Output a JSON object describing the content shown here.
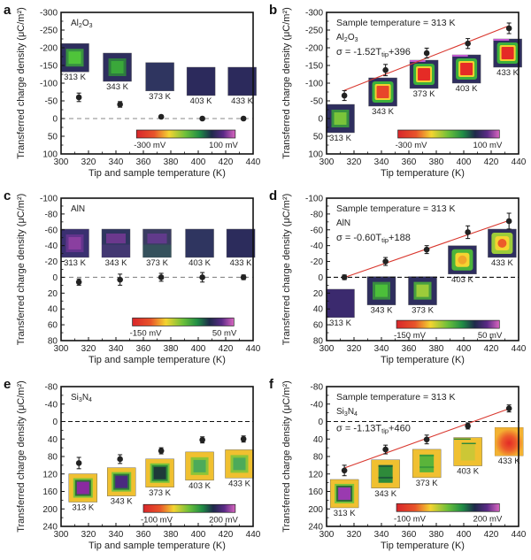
{
  "chart_data": [
    {
      "panel": "a",
      "type": "scatter",
      "material": "Al2O3",
      "material_html": [
        "Al",
        "2",
        "O",
        "3"
      ],
      "xlabel": "Tip and sample temperature (K)",
      "ylabel": "Transferred charge density (μC/m²)",
      "xlim": [
        300,
        440
      ],
      "xticks": [
        300,
        320,
        340,
        360,
        380,
        400,
        420,
        440
      ],
      "ylim": [
        100,
        -300
      ],
      "yticks": [
        -300,
        -250,
        -200,
        -150,
        -100,
        -50,
        0,
        50,
        100
      ],
      "x": [
        313,
        343,
        373,
        403,
        433
      ],
      "y": [
        -60,
        -40,
        -5,
        0,
        0
      ],
      "yerr": [
        12,
        8,
        3,
        3,
        3
      ],
      "zero_line": true,
      "sample_temperature_note": null,
      "fit": null,
      "colorbar": {
        "min_label": "-300 mV",
        "max_label": "100 mV",
        "x_range": [
          355,
          427
        ],
        "y_at": 45
      },
      "insets": [
        {
          "label": "313 K",
          "x": 310,
          "y": -172,
          "pattern": "square",
          "bg": "#2e2e5e",
          "core": "#4fc43a",
          "ring": "#3aa23c"
        },
        {
          "label": "343 K",
          "x": 341,
          "y": -145,
          "pattern": "square",
          "bg": "#2e2e5e",
          "core": "#3aa83a",
          "ring": "#2e8a3a"
        },
        {
          "label": "373 K",
          "x": 372,
          "y": -118,
          "pattern": "flat",
          "bg": "#2f3560",
          "core": "#2f3560",
          "ring": "#2f3560"
        },
        {
          "label": "403 K",
          "x": 402,
          "y": -105,
          "pattern": "flat",
          "bg": "#2c2a5c",
          "core": "#2c2a5c",
          "ring": "#2c2a5c"
        },
        {
          "label": "433 K",
          "x": 432,
          "y": -105,
          "pattern": "flat",
          "bg": "#2c2a5c",
          "core": "#2c2a5c",
          "ring": "#2c2a5c"
        }
      ]
    },
    {
      "panel": "b",
      "type": "scatter",
      "material": "Al2O3",
      "material_html": [
        "Al",
        "2",
        "O",
        "3"
      ],
      "xlabel": "Tip temperature (K)",
      "ylabel": "Transferred charge density (μC/m²)",
      "xlim": [
        300,
        440
      ],
      "xticks": [
        300,
        320,
        340,
        360,
        380,
        400,
        420,
        440
      ],
      "ylim": [
        100,
        -300
      ],
      "yticks": [
        -300,
        -250,
        -200,
        -150,
        -100,
        -50,
        0,
        50,
        100
      ],
      "x": [
        313,
        343,
        373,
        403,
        433
      ],
      "y": [
        -65,
        -137,
        -185,
        -212,
        -255
      ],
      "yerr": [
        14,
        16,
        14,
        14,
        15
      ],
      "zero_line": false,
      "sample_temperature_note": "Sample temperature = 313 K",
      "fit": {
        "equation": "σ = -1.52T",
        "subscript": "tip",
        "intercept_text": "+396",
        "slope": -1.52,
        "intercept": 396,
        "x_range": [
          313,
          433
        ],
        "color": "#d9382f"
      },
      "colorbar": {
        "min_label": "-300 mV",
        "max_label": "100 mV",
        "x_range": [
          352,
          426
        ],
        "y_at": 45
      },
      "insets": [
        {
          "label": "313 K",
          "x": 310,
          "y": 0,
          "pattern": "square",
          "bg": "#2e2e5e",
          "core": "#7ac43a",
          "ring": "#3aa23c"
        },
        {
          "label": "343 K",
          "x": 341,
          "y": -75,
          "pattern": "hot",
          "bg": "#2e2e5e",
          "core": "#e8452a",
          "ring": "#f2d130"
        },
        {
          "label": "373 K",
          "x": 371,
          "y": -125,
          "pattern": "hot",
          "bg": "#2e2e5e",
          "core": "#e52b26",
          "ring": "#f2d130"
        },
        {
          "label": "403 K",
          "x": 402,
          "y": -140,
          "pattern": "hot",
          "bg": "#2e2e5e",
          "core": "#e52b26",
          "ring": "#f2d130"
        },
        {
          "label": "433 K",
          "x": 432,
          "y": -185,
          "pattern": "hot",
          "bg": "#2e2e5e",
          "core": "#e52b26",
          "ring": "#f2d130"
        }
      ]
    },
    {
      "panel": "c",
      "type": "scatter",
      "material": "AlN",
      "material_html": [
        "AlN"
      ],
      "xlabel": "Tip and sample temperature (K)",
      "ylabel": "Transferred charge density (μC/m²)",
      "xlim": [
        300,
        440
      ],
      "xticks": [
        300,
        320,
        340,
        360,
        380,
        400,
        420,
        440
      ],
      "ylim": [
        80,
        -100
      ],
      "yticks": [
        -100,
        -80,
        -60,
        -40,
        -20,
        0,
        20,
        40,
        60,
        80
      ],
      "x": [
        313,
        343,
        373,
        403,
        433
      ],
      "y": [
        6,
        3,
        0,
        0,
        0
      ],
      "yerr": [
        4,
        7,
        5,
        6,
        3
      ],
      "zero_line": true,
      "sample_temperature_note": null,
      "fit": null,
      "colorbar": {
        "min_label": "-150 mV",
        "max_label": "50 mV",
        "x_range": [
          352,
          426
        ],
        "y_at": 57
      },
      "insets": [
        {
          "label": "313 K",
          "x": 310,
          "y": -43,
          "pattern": "square",
          "bg": "#3a3070",
          "core": "#8a3fa0",
          "ring": "#6a3590"
        },
        {
          "label": "343 K",
          "x": 340,
          "y": -43,
          "pattern": "topband",
          "bg": "#2f3560",
          "core": "#7a3a98",
          "ring": "#4b3a7a"
        },
        {
          "label": "373 K",
          "x": 370,
          "y": -43,
          "pattern": "topband",
          "bg": "#3a3c62",
          "core": "#6c3a96",
          "ring": "#335a5a"
        },
        {
          "label": "403 K",
          "x": 401,
          "y": -43,
          "pattern": "flat",
          "bg": "#2f3560",
          "core": "#2f3560",
          "ring": "#2f3560"
        },
        {
          "label": "433 K",
          "x": 431,
          "y": -43,
          "pattern": "flat",
          "bg": "#2c2c5c",
          "core": "#2c2c5c",
          "ring": "#2c2c5c"
        }
      ]
    },
    {
      "panel": "d",
      "type": "scatter",
      "material": "AlN",
      "material_html": [
        "AlN"
      ],
      "xlabel": "Tip temperature (K)",
      "ylabel": "Transferred charge density (μC/m²)",
      "xlim": [
        300,
        440
      ],
      "xticks": [
        300,
        320,
        340,
        360,
        380,
        400,
        420,
        440
      ],
      "ylim": [
        80,
        -100
      ],
      "yticks": [
        -100,
        -80,
        -60,
        -40,
        -20,
        0,
        20,
        40,
        60,
        80
      ],
      "x": [
        313,
        343,
        373,
        403,
        433
      ],
      "y": [
        0,
        -20,
        -35,
        -57,
        -71
      ],
      "yerr": [
        3,
        5,
        5,
        8,
        10
      ],
      "zero_line": true,
      "sample_temperature_note": "Sample temperature = 313 K",
      "fit": {
        "equation": "σ = -0.60T",
        "subscript": "tip",
        "intercept_text": "+188",
        "slope": -0.6,
        "intercept": 188,
        "x_range": [
          313,
          433
        ],
        "color": "#d9382f"
      },
      "colorbar": {
        "min_label": "-150 mV",
        "max_label": "50 mV",
        "x_range": [
          351,
          426
        ],
        "y_at": 60
      },
      "insets": [
        {
          "label": "313 K",
          "x": 310,
          "y": 33,
          "pattern": "flat",
          "bg": "#3b2a6e",
          "core": "#3b2a6e",
          "ring": "#3b2a6e"
        },
        {
          "label": "343 K",
          "x": 340,
          "y": 17,
          "pattern": "square",
          "bg": "#2e2e5e",
          "core": "#4cbf3a",
          "ring": "#3a9a3c"
        },
        {
          "label": "373 K",
          "x": 370,
          "y": 17,
          "pattern": "square",
          "bg": "#2e2e5e",
          "core": "#9ccc3a",
          "ring": "#4cb43a"
        },
        {
          "label": "403 K",
          "x": 399,
          "y": -22,
          "pattern": "warm",
          "bg": "#2e2e5e",
          "core": "#f0a62a",
          "ring": "#4cb43a"
        },
        {
          "label": "433 K",
          "x": 428,
          "y": -43,
          "pattern": "warm",
          "bg": "#2e2e5e",
          "core": "#ec5a2a",
          "ring": "#9ccc3a"
        }
      ]
    },
    {
      "panel": "e",
      "type": "scatter",
      "material": "Si3N4",
      "material_html": [
        "Si",
        "3",
        "N",
        "4"
      ],
      "xlabel": "Tip and sample temperature (K)",
      "ylabel": "Transferred charge density (μC/m²)",
      "xlim": [
        300,
        440
      ],
      "xticks": [
        300,
        320,
        340,
        360,
        380,
        400,
        420,
        440
      ],
      "ylim": [
        240,
        -80
      ],
      "yticks": [
        -80,
        -40,
        0,
        40,
        80,
        120,
        160,
        200,
        240
      ],
      "x": [
        313,
        343,
        373,
        403,
        433
      ],
      "y": [
        95,
        86,
        67,
        42,
        40
      ],
      "yerr": [
        13,
        10,
        7,
        7,
        7
      ],
      "zero_line": true,
      "sample_temperature_note": null,
      "fit": null,
      "colorbar": {
        "min_label": "-100 mV",
        "max_label": "200 mV",
        "x_range": [
          360,
          427
        ],
        "y_at": 200
      },
      "insets": [
        {
          "label": "313 K",
          "x": 316,
          "y": 152,
          "pattern": "cold",
          "bg": "#f0c030",
          "core": "#8a2aa0",
          "ring": "#2e6a3a"
        },
        {
          "label": "343 K",
          "x": 344,
          "y": 138,
          "pattern": "cold",
          "bg": "#f0c030",
          "core": "#4a2a80",
          "ring": "#2e7a3a"
        },
        {
          "label": "373 K",
          "x": 372,
          "y": 118,
          "pattern": "cold",
          "bg": "#f0c030",
          "core": "#1e3a3a",
          "ring": "#2e8a3a"
        },
        {
          "label": "403 K",
          "x": 401,
          "y": 102,
          "pattern": "square",
          "bg": "#f0c030",
          "core": "#4caa5a",
          "ring": "#7ac43a"
        },
        {
          "label": "433 K",
          "x": 430,
          "y": 97,
          "pattern": "square",
          "bg": "#f0c030",
          "core": "#4caa5a",
          "ring": "#7ac43a"
        }
      ]
    },
    {
      "panel": "f",
      "type": "scatter",
      "material": "Si3N4",
      "material_html": [
        "Si",
        "3",
        "N",
        "4"
      ],
      "xlabel": "Tip temperature (K)",
      "ylabel": "Transferred charge density (μC/m²)",
      "xlim": [
        300,
        440
      ],
      "xticks": [
        300,
        320,
        340,
        360,
        380,
        400,
        420,
        440
      ],
      "ylim": [
        240,
        -80
      ],
      "yticks": [
        -80,
        -40,
        0,
        40,
        80,
        120,
        160,
        200,
        240
      ],
      "x": [
        313,
        343,
        373,
        403,
        433
      ],
      "y": [
        112,
        64,
        41,
        10,
        -30
      ],
      "yerr": [
        12,
        10,
        10,
        7,
        8
      ],
      "zero_line": true,
      "sample_temperature_note": "Sample temperature = 313 K",
      "fit": {
        "equation": "σ = -1.13T",
        "subscript": "tip",
        "intercept_text": "+460",
        "slope": -1.13,
        "intercept": 460,
        "x_range": [
          313,
          433
        ],
        "color": "#d9382f"
      },
      "colorbar": {
        "min_label": "-100 mV",
        "max_label": "200 mV",
        "x_range": [
          351,
          426
        ],
        "y_at": 198
      },
      "insets": [
        {
          "label": "313 K",
          "x": 313,
          "y": 165,
          "pattern": "cold",
          "bg": "#f0c030",
          "core": "#9a3ab0",
          "ring": "#2e6a3a"
        },
        {
          "label": "343 K",
          "x": 343,
          "y": 120,
          "pattern": "stripe",
          "bg": "#f0c030",
          "core": "#2e8a3a",
          "ring": "#1e5a3a"
        },
        {
          "label": "373 K",
          "x": 373,
          "y": 96,
          "pattern": "stripe",
          "bg": "#f0c030",
          "core": "#5ab43a",
          "ring": "#3a9a3a"
        },
        {
          "label": "403 K",
          "x": 403,
          "y": 69,
          "pattern": "stripe2",
          "bg": "#f0c030",
          "core": "#b4cc3a",
          "ring": "#3a9a3a"
        },
        {
          "label": "433 K",
          "x": 433,
          "y": 46,
          "pattern": "redspot",
          "bg": "#f2b030",
          "core": "#e8362a",
          "ring": "#f0802a"
        }
      ]
    }
  ]
}
